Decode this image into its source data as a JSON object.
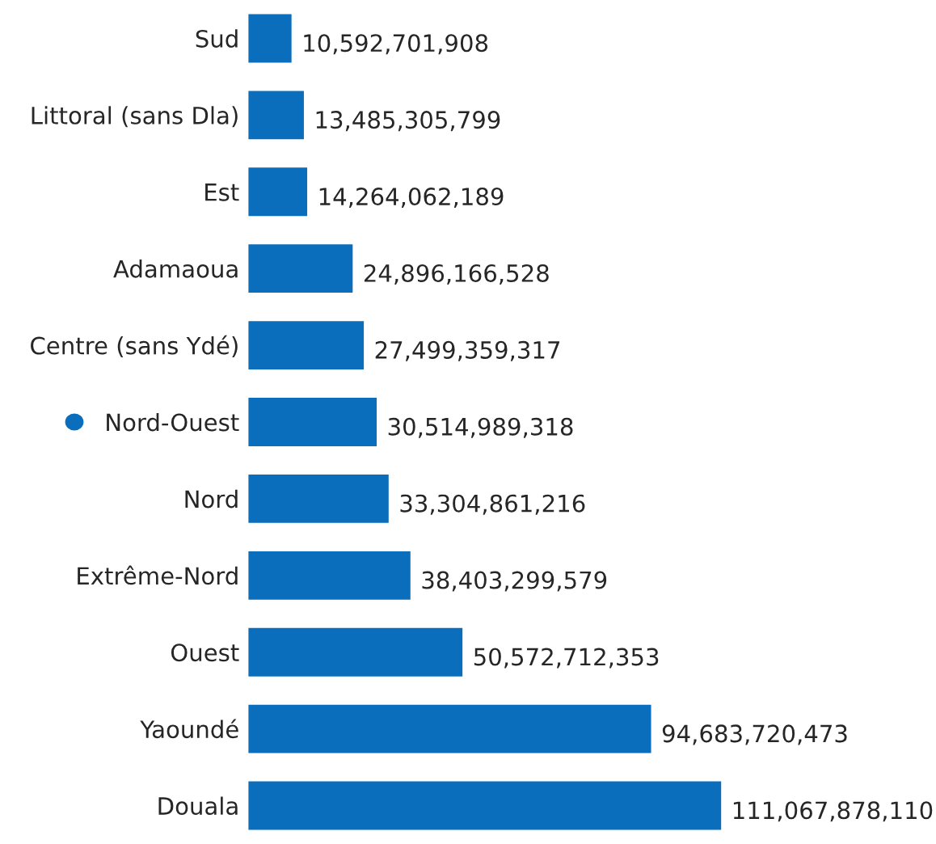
{
  "chart_data": {
    "type": "bar",
    "orientation": "horizontal",
    "categories": [
      "Sud",
      "Littoral (sans Dla)",
      "Est",
      "Adamaoua",
      "Centre (sans Ydé)",
      "Nord-Ouest",
      "Nord",
      "Extrême-Nord",
      "Ouest",
      "Yaoundé",
      "Douala"
    ],
    "values": [
      10592701908,
      13485305799,
      14264062189,
      24896166528,
      27499359317,
      30514989318,
      33304861216,
      38403299579,
      50572712353,
      94683720473,
      111067878110
    ],
    "value_labels": [
      "10,592,701,908",
      "13,485,305,799",
      "14,264,062,189",
      "24,896,166,528",
      "27,499,359,317",
      "30,514,989,318",
      "33,304,861,216",
      "38,403,299,579",
      "50,572,712,353",
      "94,683,720,473",
      "111,067,878,110"
    ],
    "color": "#0a6ebd",
    "grid": false,
    "legend": false,
    "tick_labels": "y"
  }
}
